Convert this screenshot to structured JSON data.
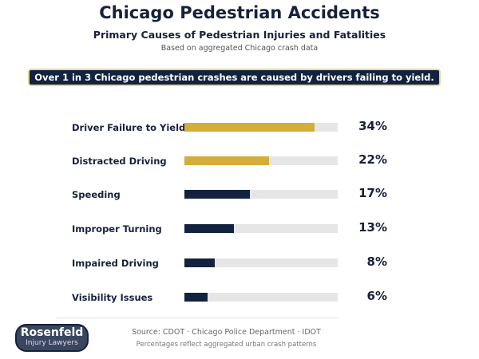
{
  "header": {
    "title": "Chicago Pedestrian Accidents",
    "subtitle": "Primary Causes of Pedestrian Injuries and Fatalities",
    "note": "Based on aggregated Chicago crash data"
  },
  "callout": "Over 1 in 3 Chicago pedestrian crashes are caused by drivers failing to yield.",
  "colors": {
    "gold": "#d4ae3b",
    "navy": "#13223f",
    "track": "#e6e6e6"
  },
  "chart_data": {
    "type": "bar",
    "orientation": "horizontal",
    "categories": [
      "Driver Failure to Yield",
      "Distracted Driving",
      "Speeding",
      "Improper Turning",
      "Impaired Driving",
      "Visibility Issues"
    ],
    "values": [
      34,
      22,
      17,
      13,
      8,
      6
    ],
    "value_labels": [
      "34%",
      "22%",
      "17%",
      "13%",
      "8%",
      "6%"
    ],
    "bar_colors": [
      "#d4ae3b",
      "#d4ae3b",
      "#13223f",
      "#13223f",
      "#13223f",
      "#13223f"
    ],
    "xlim": [
      0,
      40
    ],
    "grid": false
  },
  "footer": {
    "logo": {
      "line1": "Rosenfeld",
      "line2": "Injury Lawyers"
    },
    "source": "Source: CDOT · Chicago Police Department · IDOT",
    "note": "Percentages reflect aggregated urban crash patterns"
  }
}
